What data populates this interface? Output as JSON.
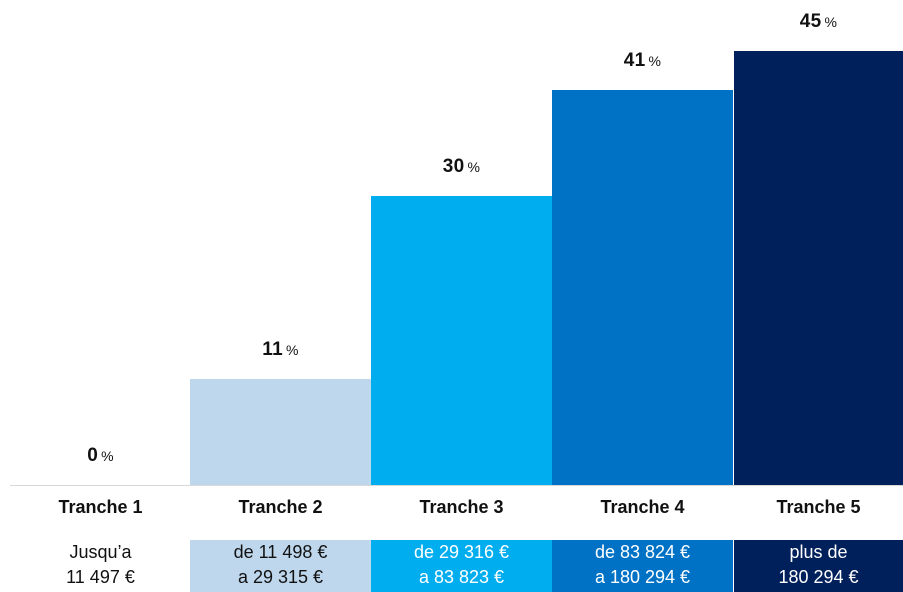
{
  "chart_data": {
    "type": "bar",
    "categories": [
      "Tranche 1",
      "Tranche 2",
      "Tranche 3",
      "Tranche 4",
      "Tranche 5"
    ],
    "values": [
      0,
      11,
      30,
      41,
      45
    ],
    "value_labels": [
      "0",
      "11",
      "30",
      "41",
      "45"
    ],
    "unit": "%",
    "ranges": [
      [
        "Jusqu’a",
        "11 497 €"
      ],
      [
        "de 11 498 €",
        "a 29 315 €"
      ],
      [
        "de 29 316 €",
        "a 83 823 €"
      ],
      [
        "de 83 824 €",
        "a 180 294 €"
      ],
      [
        "plus de",
        "180 294 €"
      ]
    ],
    "colors": [
      "#ffffff",
      "#bed7ed",
      "#00adef",
      "#0072c6",
      "#00205c"
    ],
    "range_text_colors": [
      "#111111",
      "#111111",
      "#ffffff",
      "#ffffff",
      "#ffffff"
    ],
    "title": "",
    "xlabel": "",
    "ylabel": "",
    "ylim": [
      0,
      45
    ],
    "grid": false,
    "legend": "none"
  }
}
